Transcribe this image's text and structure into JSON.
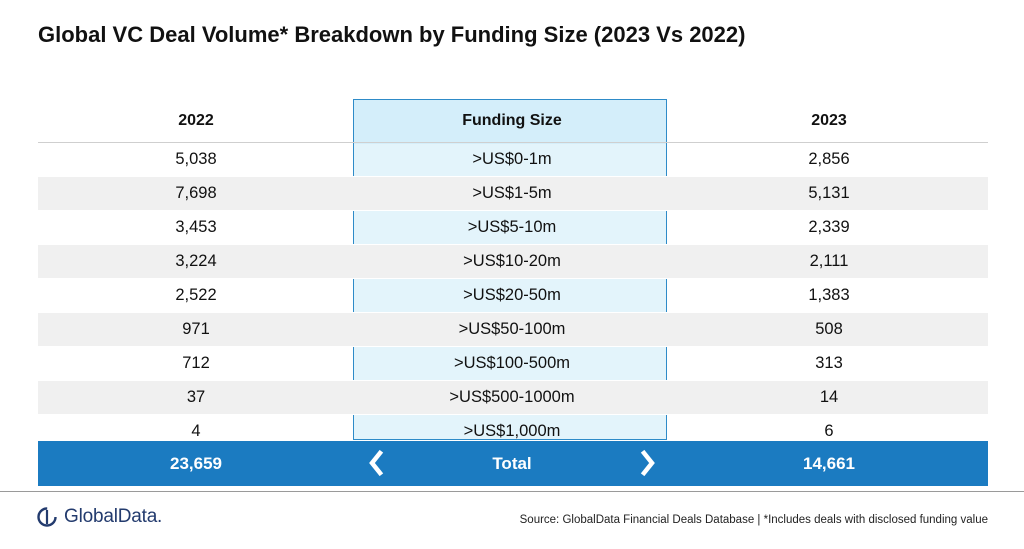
{
  "title": "Global VC Deal Volume* Breakdown by Funding Size (2023 Vs 2022)",
  "chart_data": {
    "type": "table",
    "title": "Global VC Deal Volume* Breakdown by Funding Size (2023 Vs 2022)",
    "columns": [
      "2022",
      "Funding Size",
      "2023"
    ],
    "rows": [
      {
        "y2022": "5,038",
        "size": ">US$0-1m",
        "y2023": "2,856"
      },
      {
        "y2022": "7,698",
        "size": ">US$1-5m",
        "y2023": "5,131"
      },
      {
        "y2022": "3,453",
        "size": ">US$5-10m",
        "y2023": "2,339"
      },
      {
        "y2022": "3,224",
        "size": ">US$10-20m",
        "y2023": "2,111"
      },
      {
        "y2022": "2,522",
        "size": ">US$20-50m",
        "y2023": "1,383"
      },
      {
        "y2022": "971",
        "size": ">US$50-100m",
        "y2023": "508"
      },
      {
        "y2022": "712",
        "size": ">US$100-500m",
        "y2023": "313"
      },
      {
        "y2022": "37",
        "size": ">US$500-1000m",
        "y2023": "14"
      },
      {
        "y2022": "4",
        "size": ">US$1,000m",
        "y2023": "6"
      }
    ],
    "total": {
      "y2022": "23,659",
      "label": "Total",
      "y2023": "14,661"
    }
  },
  "colors": {
    "total_band": "#1b7bc1",
    "middle_column": "#e3f4fb",
    "middle_border": "#2e8bc8",
    "shaded_row": "#f0f0f0"
  },
  "footer": {
    "logo_text": "GlobalData.",
    "source": "Source:  GlobalData Financial Deals Database | *Includes deals with disclosed funding value"
  },
  "icons": {
    "left": "chevron-left-icon",
    "right": "chevron-right-icon",
    "logo": "globaldata-logo-icon"
  }
}
